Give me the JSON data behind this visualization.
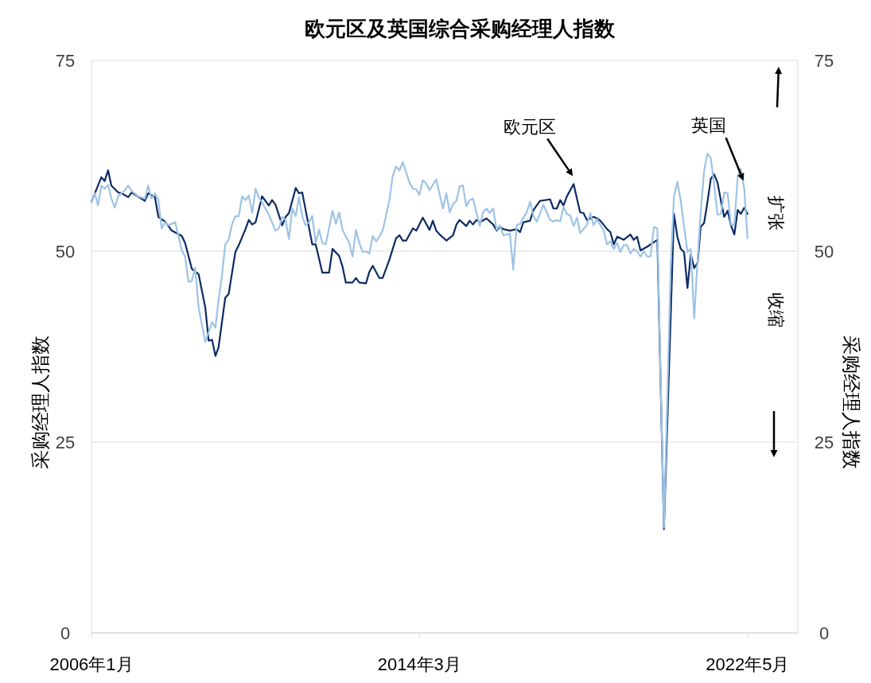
{
  "chart_data": {
    "type": "line",
    "title": "欧元区及英国综合采购经理人指数",
    "ylabel": "采购经理人指数",
    "y2label": "采购经理人指数",
    "xlim": [
      "2006-01",
      "2023-08"
    ],
    "xticks": [
      {
        "value": "2006-01",
        "label": "2006年1月"
      },
      {
        "value": "2014-03",
        "label": "2014年3月"
      },
      {
        "value": "2022-05",
        "label": "2022年5月"
      }
    ],
    "ylim": [
      0,
      75
    ],
    "yticks": [
      0,
      25,
      50,
      75
    ],
    "y2lim": [
      0,
      75
    ],
    "y2ticks": [
      0,
      25,
      50,
      75
    ],
    "grid": "y",
    "annotations": [
      "扩张",
      "收缩"
    ],
    "series": [
      {
        "name": "欧元区",
        "color": "#0b2a63",
        "x": [
          "2006-01",
          "2006-04",
          "2006-05",
          "2006-06",
          "2006-07",
          "2006-09",
          "2006-10",
          "2006-12",
          "2007-01",
          "2007-05",
          "2007-06",
          "2007-08",
          "2007-09",
          "2007-11",
          "2008-01",
          "2008-04",
          "2008-05",
          "2008-07",
          "2008-09",
          "2008-11",
          "2008-12",
          "2009-01",
          "2009-02",
          "2009-03",
          "2009-05",
          "2009-06",
          "2009-08",
          "2009-09",
          "2009-11",
          "2009-12",
          "2010-01",
          "2010-02",
          "2010-04",
          "2010-06",
          "2010-07",
          "2010-08",
          "2010-10",
          "2010-11",
          "2010-12",
          "2011-02",
          "2011-03",
          "2011-04",
          "2011-07",
          "2011-08",
          "2011-10",
          "2011-12",
          "2012-01",
          "2012-03",
          "2012-04",
          "2012-05",
          "2012-07",
          "2012-08",
          "2012-09",
          "2012-11",
          "2012-12",
          "2013-01",
          "2013-03",
          "2013-04",
          "2013-06",
          "2013-08",
          "2013-09",
          "2013-10",
          "2013-11",
          "2014-01",
          "2014-02",
          "2014-04",
          "2014-06",
          "2014-07",
          "2014-08",
          "2014-09",
          "2014-11",
          "2015-01",
          "2015-02",
          "2015-03",
          "2015-05",
          "2015-06",
          "2015-07",
          "2015-08",
          "2015-09",
          "2015-11",
          "2016-01",
          "2016-02",
          "2016-03",
          "2016-04",
          "2016-06",
          "2016-08",
          "2016-09",
          "2016-10",
          "2016-12",
          "2017-01",
          "2017-03",
          "2017-06",
          "2017-07",
          "2017-08",
          "2017-09",
          "2017-10",
          "2017-11",
          "2018-01",
          "2018-03",
          "2018-04",
          "2018-05",
          "2018-07",
          "2018-08",
          "2018-09",
          "2018-11",
          "2018-12",
          "2019-01",
          "2019-02",
          "2019-04",
          "2019-06",
          "2019-07",
          "2019-08",
          "2019-09",
          "2019-11",
          "2019-12",
          "2020-02",
          "2020-04",
          "2020-07",
          "2020-08",
          "2020-09",
          "2020-10",
          "2020-11",
          "2020-12",
          "2021-01",
          "2021-02",
          "2021-03",
          "2021-04",
          "2021-05",
          "2021-06",
          "2021-07",
          "2021-08",
          "2021-09",
          "2021-10",
          "2021-11",
          "2021-12",
          "2022-01",
          "2022-02",
          "2022-03",
          "2022-04",
          "2022-05"
        ],
        "values": [
          56.5,
          59.7,
          59.2,
          60.6,
          58.6,
          57.7,
          57.6,
          57.1,
          57.7,
          56.6,
          57.6,
          57.1,
          54.5,
          53.9,
          52.7,
          52.0,
          51.1,
          47.7,
          47.0,
          42.6,
          38.3,
          38.4,
          36.3,
          37.4,
          43.9,
          44.4,
          49.9,
          50.8,
          52.9,
          54.1,
          53.5,
          53.8,
          57.2,
          56.0,
          56.7,
          56.1,
          53.4,
          54.5,
          55.0,
          58.3,
          57.6,
          57.7,
          50.9,
          50.9,
          47.2,
          47.2,
          50.3,
          49.4,
          48.0,
          45.9,
          45.9,
          46.5,
          45.9,
          45.8,
          47.3,
          48.1,
          46.5,
          46.5,
          48.9,
          51.7,
          52.1,
          51.4,
          51.4,
          53.0,
          52.7,
          54.4,
          52.8,
          54.0,
          52.7,
          52.2,
          51.4,
          52.1,
          53.5,
          54.1,
          53.3,
          54.0,
          53.5,
          54.1,
          53.8,
          54.3,
          53.5,
          52.7,
          53.2,
          52.9,
          52.7,
          52.9,
          52.5,
          53.8,
          54.0,
          55.4,
          56.6,
          56.8,
          55.6,
          55.6,
          56.7,
          56.0,
          57.2,
          58.8,
          55.1,
          55.0,
          54.1,
          54.5,
          54.3,
          54.0,
          52.9,
          52.5,
          50.9,
          51.9,
          51.5,
          52.2,
          51.5,
          51.9,
          50.1,
          50.6,
          50.9,
          51.5,
          13.6,
          54.9,
          51.9,
          50.3,
          49.9,
          45.2,
          49.6,
          47.8,
          48.5,
          53.2,
          53.7,
          56.4,
          59.5,
          60.1,
          59.0,
          56.6,
          54.5,
          55.3,
          53.4,
          52.2,
          55.4,
          54.9,
          55.7,
          54.9
        ]
      },
      {
        "name": "英国",
        "color": "#9dc3e6",
        "x": [
          "2006-01",
          "2006-02",
          "2006-03",
          "2006-04",
          "2006-05",
          "2006-06",
          "2006-07",
          "2006-08",
          "2006-09",
          "2006-11",
          "2006-12",
          "2007-01",
          "2007-03",
          "2007-05",
          "2007-06",
          "2007-07",
          "2007-08",
          "2007-09",
          "2007-10",
          "2007-11",
          "2007-12",
          "2008-02",
          "2008-03",
          "2008-04",
          "2008-05",
          "2008-06",
          "2008-07",
          "2008-08",
          "2008-09",
          "2008-11",
          "2008-12",
          "2009-01",
          "2009-02",
          "2009-03",
          "2009-04",
          "2009-05",
          "2009-06",
          "2009-07",
          "2009-08",
          "2009-09",
          "2009-10",
          "2009-11",
          "2009-12",
          "2010-01",
          "2010-02",
          "2010-03",
          "2010-04",
          "2010-06",
          "2010-08",
          "2010-09",
          "2010-10",
          "2010-11",
          "2010-12",
          "2011-01",
          "2011-02",
          "2011-03",
          "2011-04",
          "2011-05",
          "2011-06",
          "2011-07",
          "2011-08",
          "2011-09",
          "2011-10",
          "2011-11",
          "2012-01",
          "2012-02",
          "2012-03",
          "2012-04",
          "2012-06",
          "2012-07",
          "2012-08",
          "2012-09",
          "2012-10",
          "2012-11",
          "2012-12",
          "2013-01",
          "2013-02",
          "2013-03",
          "2013-04",
          "2013-05",
          "2013-06",
          "2013-07",
          "2013-08",
          "2013-09",
          "2013-10",
          "2013-11",
          "2013-12",
          "2014-01",
          "2014-02",
          "2014-03",
          "2014-04",
          "2014-05",
          "2014-06",
          "2014-08",
          "2014-10",
          "2014-11",
          "2014-12",
          "2015-01",
          "2015-02",
          "2015-03",
          "2015-04",
          "2015-05",
          "2015-06",
          "2015-07",
          "2015-08",
          "2015-09",
          "2015-10",
          "2015-11",
          "2015-12",
          "2016-01",
          "2016-02",
          "2016-03",
          "2016-04",
          "2016-06",
          "2016-07",
          "2016-08",
          "2016-09",
          "2016-10",
          "2016-11",
          "2016-12",
          "2017-01",
          "2017-02",
          "2017-04",
          "2017-06",
          "2017-07",
          "2017-08",
          "2017-09",
          "2017-10",
          "2017-11",
          "2017-12",
          "2018-01",
          "2018-02",
          "2018-03",
          "2018-05",
          "2018-06",
          "2018-07",
          "2018-08",
          "2018-10",
          "2018-11",
          "2018-12",
          "2019-01",
          "2019-02",
          "2019-03",
          "2019-04",
          "2019-05",
          "2019-06",
          "2019-07",
          "2019-08",
          "2019-09",
          "2019-10",
          "2019-11",
          "2019-12",
          "2020-01",
          "2020-02",
          "2020-04",
          "2020-06",
          "2020-07",
          "2020-08",
          "2020-09",
          "2020-10",
          "2020-11",
          "2020-12",
          "2021-01",
          "2021-02",
          "2021-03",
          "2021-04",
          "2021-05",
          "2021-06",
          "2021-07",
          "2021-08",
          "2021-09",
          "2021-10",
          "2021-11",
          "2021-12",
          "2022-01",
          "2022-02",
          "2022-03",
          "2022-04",
          "2022-05"
        ],
        "values": [
          56.5,
          57.6,
          56.0,
          58.6,
          58.2,
          58.7,
          56.9,
          55.7,
          57.2,
          58.0,
          58.6,
          57.9,
          57.2,
          56.9,
          58.6,
          56.9,
          57.6,
          56.7,
          53.0,
          53.8,
          53.4,
          53.8,
          52.0,
          50.1,
          49.3,
          46.0,
          46.1,
          47.8,
          42.6,
          38.1,
          39.4,
          40.7,
          40.0,
          43.6,
          46.8,
          50.9,
          51.5,
          53.5,
          54.6,
          54.6,
          57.2,
          56.7,
          57.3,
          55.0,
          58.2,
          57.1,
          56.4,
          54.8,
          52.7,
          53.0,
          54.5,
          54.1,
          51.6,
          55.6,
          54.6,
          57.1,
          54.6,
          53.4,
          53.8,
          54.6,
          51.1,
          52.8,
          51.1,
          50.9,
          55.3,
          53.6,
          55.1,
          52.8,
          51.1,
          49.3,
          52.8,
          51.1,
          49.9,
          50.0,
          49.7,
          52.0,
          51.3,
          51.9,
          52.7,
          54.6,
          56.7,
          59.8,
          61.1,
          60.6,
          61.7,
          60.3,
          59.0,
          58.2,
          58.1,
          57.4,
          59.3,
          58.9,
          58.0,
          59.4,
          55.6,
          57.6,
          55.1,
          56.2,
          56.6,
          58.5,
          58.6,
          55.9,
          56.7,
          56.9,
          55.1,
          53.3,
          55.1,
          55.6,
          55.0,
          55.6,
          52.8,
          53.4,
          52.1,
          52.3,
          47.6,
          53.4,
          53.6,
          54.4,
          55.1,
          56.5,
          54.6,
          53.9,
          56.1,
          54.1,
          53.9,
          54.1,
          53.9,
          55.8,
          54.9,
          54.7,
          53.3,
          54.4,
          52.4,
          53.4,
          55.0,
          53.4,
          54.2,
          52.7,
          50.9,
          51.3,
          50.3,
          51.1,
          49.9,
          50.8,
          50.8,
          49.7,
          50.3,
          50.0,
          49.3,
          50.0,
          49.3,
          49.3,
          53.2,
          53.0,
          13.8,
          47.8,
          57.2,
          59.1,
          56.6,
          53.2,
          49.9,
          50.3,
          41.2,
          48.9,
          55.1,
          60.5,
          62.8,
          62.2,
          58.8,
          54.8,
          54.9,
          57.7,
          57.6,
          53.5,
          53.5,
          59.8,
          60.8,
          58.2,
          51.7
        ]
      }
    ]
  }
}
